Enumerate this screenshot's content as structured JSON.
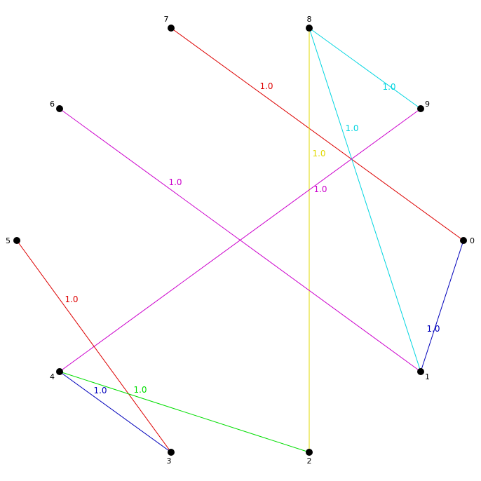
{
  "nodes": [
    {
      "id": "0",
      "label": "0"
    },
    {
      "id": "1",
      "label": "1"
    },
    {
      "id": "2",
      "label": "2"
    },
    {
      "id": "3",
      "label": "3"
    },
    {
      "id": "4",
      "label": "4"
    },
    {
      "id": "5",
      "label": "5"
    },
    {
      "id": "6",
      "label": "6"
    },
    {
      "id": "7",
      "label": "7"
    },
    {
      "id": "8",
      "label": "8"
    },
    {
      "id": "9",
      "label": "9"
    }
  ],
  "edges": [
    {
      "source": "7",
      "target": "0",
      "weight": "1.0",
      "color": "#dd0000"
    },
    {
      "source": "8",
      "target": "9",
      "weight": "1.0",
      "color": "#00d5e0"
    },
    {
      "source": "8",
      "target": "1",
      "weight": "1.0",
      "color": "#00d5e0"
    },
    {
      "source": "8",
      "target": "2",
      "weight": "1.0",
      "color": "#e0d800"
    },
    {
      "source": "9",
      "target": "4",
      "weight": "1.0",
      "color": "#cc00cc"
    },
    {
      "source": "6",
      "target": "1",
      "weight": "1.0",
      "color": "#cc00cc"
    },
    {
      "source": "0",
      "target": "1",
      "weight": "1.0",
      "color": "#0000bb"
    },
    {
      "source": "5",
      "target": "3",
      "weight": "1.0",
      "color": "#dd0000"
    },
    {
      "source": "4",
      "target": "3",
      "weight": "1.0",
      "color": "#0000bb"
    },
    {
      "source": "4",
      "target": "2",
      "weight": "1.0",
      "color": "#00dd00"
    }
  ],
  "colors": {
    "node_fill": "#000000",
    "node_label": "#000000",
    "background": "#ffffff"
  }
}
